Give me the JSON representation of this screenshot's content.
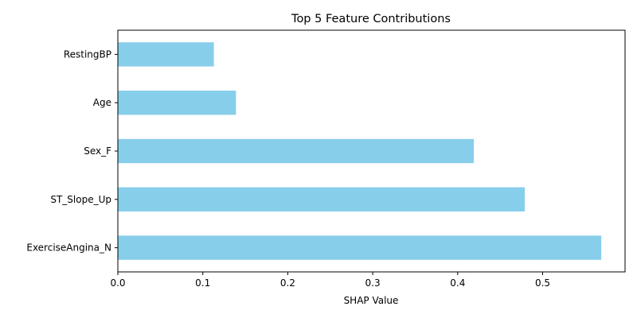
{
  "chart_data": {
    "type": "bar",
    "orientation": "horizontal",
    "title": "Top 5 Feature Contributions",
    "xlabel": "SHAP Value",
    "ylabel": "",
    "categories": [
      "ExerciseAngina_N",
      "ST_Slope_Up",
      "Sex_F",
      "Age",
      "RestingBP"
    ],
    "values": [
      0.569,
      0.479,
      0.419,
      0.139,
      0.113
    ],
    "xlim": [
      0,
      0.597
    ],
    "xticks": [
      0.0,
      0.1,
      0.2,
      0.3,
      0.4,
      0.5
    ],
    "xtick_labels": [
      "0.0",
      "0.1",
      "0.2",
      "0.3",
      "0.4",
      "0.5"
    ],
    "bar_color": "#87ceeb",
    "grid": false,
    "legend": "none"
  }
}
